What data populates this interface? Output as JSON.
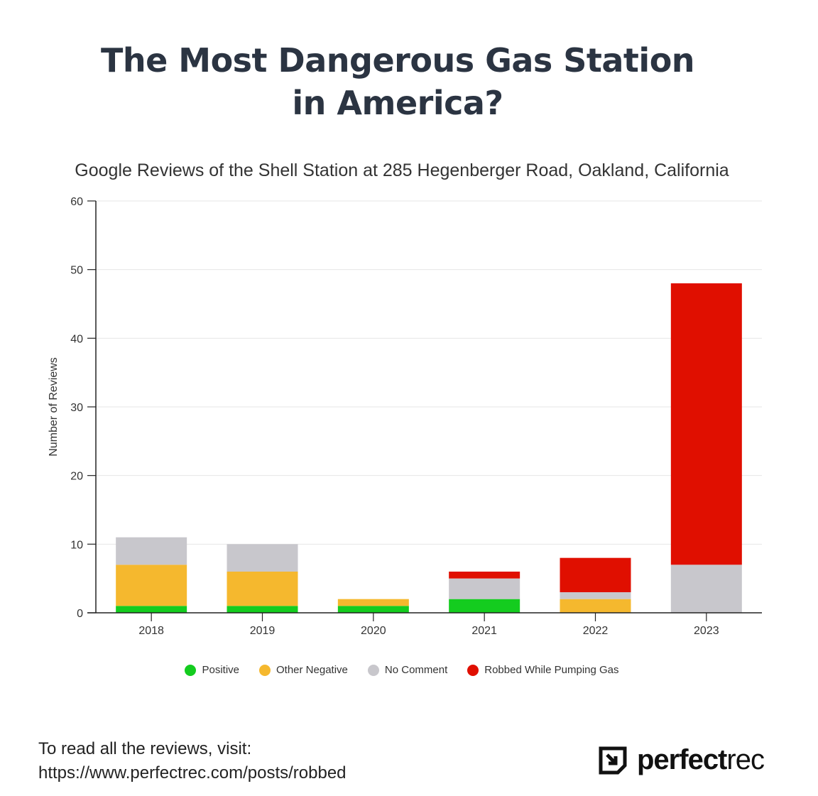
{
  "title_line1": "The Most Dangerous Gas Station",
  "title_line2": "in America?",
  "chart_data": {
    "type": "bar",
    "stacked": true,
    "title": "Google Reviews of the Shell Station at 285 Hegenberger Road, Oakland, California",
    "xlabel": "",
    "ylabel": "Number of Reviews",
    "ylim": [
      0,
      60
    ],
    "yticks": [
      0,
      10,
      20,
      30,
      40,
      50,
      60
    ],
    "grid": true,
    "legend_placement": "bottom",
    "categories": [
      "2018",
      "2019",
      "2020",
      "2021",
      "2022",
      "2023"
    ],
    "series": [
      {
        "name": "Positive",
        "color": "#14cc1f",
        "values": [
          1,
          1,
          1,
          2,
          0,
          0
        ]
      },
      {
        "name": "Other Negative",
        "color": "#f5b82e",
        "values": [
          6,
          5,
          1,
          0,
          2,
          0
        ]
      },
      {
        "name": "No Comment",
        "color": "#c8c7cc",
        "values": [
          4,
          4,
          0,
          3,
          1,
          7
        ]
      },
      {
        "name": "Robbed While Pumping Gas",
        "color": "#e00f00",
        "values": [
          0,
          0,
          0,
          1,
          5,
          41
        ]
      }
    ]
  },
  "footer": {
    "line1": "To read all the reviews, visit:",
    "line2": "https://www.perfectrec.com/posts/robbed"
  },
  "logo": {
    "bold": "perfect",
    "light": "rec"
  }
}
